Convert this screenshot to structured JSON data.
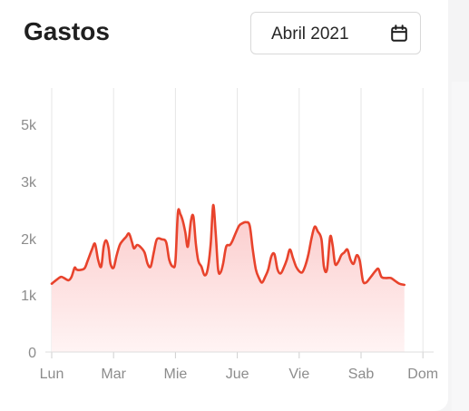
{
  "header": {
    "title": "Gastos",
    "date_value": "Abril 2021"
  },
  "icons": {
    "calendar": "calendar-icon"
  },
  "colors": {
    "line": "#e8432c",
    "fill_top": "#fbcaca",
    "fill_bottom": "#fff4f4",
    "grid": "#e6e6e6",
    "axis_text": "#8c8c8c"
  },
  "chart_data": {
    "type": "area",
    "title": "",
    "xlabel": "",
    "ylabel": "",
    "x_tick_labels": [
      "Lun",
      "Mar",
      "Mie",
      "Jue",
      "Vie",
      "Sab",
      "Dom"
    ],
    "y_tick_labels": [
      "0",
      "1k",
      "2k",
      "3k",
      "5k"
    ],
    "grid": "vertical",
    "series": [
      {
        "values": [
          [
            0.0,
            1.2
          ],
          [
            0.08,
            1.27
          ],
          [
            0.15,
            1.32
          ],
          [
            0.2,
            1.3
          ],
          [
            0.27,
            1.26
          ],
          [
            0.32,
            1.32
          ],
          [
            0.37,
            1.48
          ],
          [
            0.4,
            1.45
          ],
          [
            0.45,
            1.44
          ],
          [
            0.53,
            1.47
          ],
          [
            0.58,
            1.6
          ],
          [
            0.65,
            1.8
          ],
          [
            0.7,
            1.9
          ],
          [
            0.75,
            1.62
          ],
          [
            0.8,
            1.5
          ],
          [
            0.84,
            1.85
          ],
          [
            0.88,
            1.96
          ],
          [
            0.92,
            1.82
          ],
          [
            0.95,
            1.55
          ],
          [
            1.0,
            1.48
          ],
          [
            1.05,
            1.7
          ],
          [
            1.1,
            1.88
          ],
          [
            1.15,
            1.96
          ],
          [
            1.2,
            2.02
          ],
          [
            1.25,
            2.08
          ],
          [
            1.3,
            1.92
          ],
          [
            1.33,
            1.82
          ],
          [
            1.38,
            1.88
          ],
          [
            1.43,
            1.85
          ],
          [
            1.5,
            1.75
          ],
          [
            1.55,
            1.55
          ],
          [
            1.6,
            1.5
          ],
          [
            1.65,
            1.75
          ],
          [
            1.7,
            1.98
          ],
          [
            1.78,
            1.98
          ],
          [
            1.85,
            1.93
          ],
          [
            1.9,
            1.62
          ],
          [
            1.96,
            1.5
          ],
          [
            2.0,
            1.6
          ],
          [
            2.04,
            2.45
          ],
          [
            2.08,
            2.42
          ],
          [
            2.12,
            2.3
          ],
          [
            2.16,
            2.1
          ],
          [
            2.2,
            1.85
          ],
          [
            2.25,
            2.3
          ],
          [
            2.29,
            2.38
          ],
          [
            2.33,
            1.9
          ],
          [
            2.37,
            1.6
          ],
          [
            2.42,
            1.5
          ],
          [
            2.47,
            1.35
          ],
          [
            2.52,
            1.45
          ],
          [
            2.57,
            1.9
          ],
          [
            2.61,
            2.58
          ],
          [
            2.65,
            2.1
          ],
          [
            2.69,
            1.45
          ],
          [
            2.73,
            1.4
          ],
          [
            2.77,
            1.55
          ],
          [
            2.82,
            1.85
          ],
          [
            2.88,
            1.88
          ],
          [
            2.92,
            1.95
          ],
          [
            2.97,
            2.08
          ],
          [
            3.03,
            2.22
          ],
          [
            3.08,
            2.26
          ],
          [
            3.14,
            2.28
          ],
          [
            3.2,
            2.22
          ],
          [
            3.25,
            1.8
          ],
          [
            3.3,
            1.45
          ],
          [
            3.35,
            1.3
          ],
          [
            3.4,
            1.22
          ],
          [
            3.45,
            1.32
          ],
          [
            3.5,
            1.45
          ],
          [
            3.55,
            1.68
          ],
          [
            3.6,
            1.72
          ],
          [
            3.65,
            1.45
          ],
          [
            3.7,
            1.38
          ],
          [
            3.75,
            1.48
          ],
          [
            3.8,
            1.62
          ],
          [
            3.85,
            1.8
          ],
          [
            3.9,
            1.65
          ],
          [
            3.95,
            1.5
          ],
          [
            4.0,
            1.42
          ],
          [
            4.05,
            1.4
          ],
          [
            4.1,
            1.52
          ],
          [
            4.15,
            1.72
          ],
          [
            4.2,
            2.0
          ],
          [
            4.25,
            2.2
          ],
          [
            4.3,
            2.12
          ],
          [
            4.36,
            1.98
          ],
          [
            4.4,
            1.5
          ],
          [
            4.45,
            1.45
          ],
          [
            4.5,
            2.02
          ],
          [
            4.54,
            1.88
          ],
          [
            4.58,
            1.55
          ],
          [
            4.63,
            1.58
          ],
          [
            4.68,
            1.7
          ],
          [
            4.73,
            1.75
          ],
          [
            4.78,
            1.8
          ],
          [
            4.83,
            1.62
          ],
          [
            4.88,
            1.55
          ],
          [
            4.93,
            1.7
          ],
          [
            4.98,
            1.6
          ],
          [
            5.03,
            1.25
          ],
          [
            5.08,
            1.22
          ],
          [
            5.13,
            1.28
          ],
          [
            5.18,
            1.35
          ],
          [
            5.23,
            1.42
          ],
          [
            5.28,
            1.46
          ],
          [
            5.33,
            1.32
          ],
          [
            5.4,
            1.3
          ],
          [
            5.48,
            1.3
          ],
          [
            5.55,
            1.25
          ],
          [
            5.62,
            1.2
          ],
          [
            5.7,
            1.18
          ]
        ]
      }
    ]
  }
}
